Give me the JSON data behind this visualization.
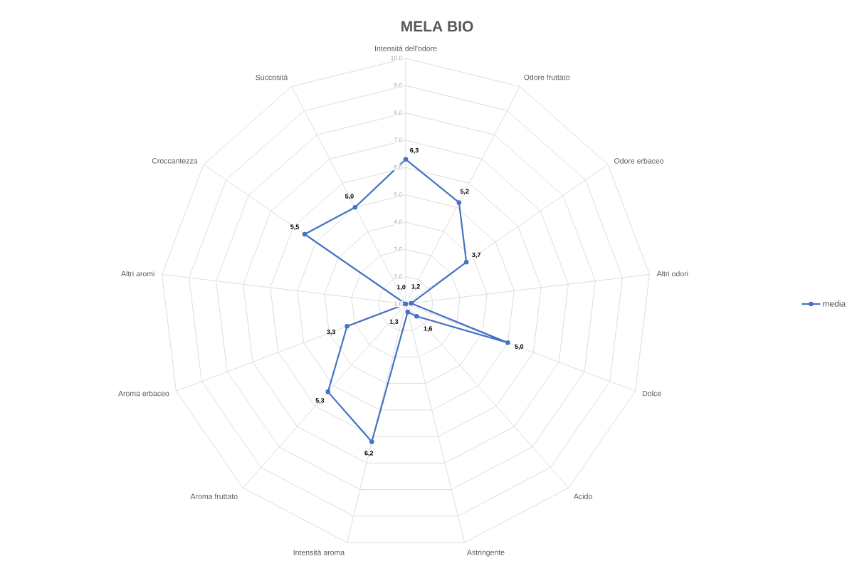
{
  "chart_data": {
    "type": "radar",
    "title": "MELA BIO",
    "categories": [
      "Intensità dell'odore",
      "Odore fruttato",
      "Odore erbaceo",
      "Altri odori",
      "Dolce",
      "Acido",
      "Astringente",
      "Intensità aroma",
      "Aroma fruttato",
      "Aroma erbaceo",
      "Altri aromi",
      "Croccantezza",
      "Succosità"
    ],
    "series": [
      {
        "name": "media",
        "color": "#4472c4",
        "values": [
          6.3,
          5.2,
          3.7,
          1.2,
          5.0,
          1.6,
          1.3,
          6.2,
          5.3,
          3.3,
          1.0,
          5.5,
          5.0
        ],
        "value_labels": [
          "6,3",
          "5,2",
          "3,7",
          "1,2",
          "5,0",
          "1,6",
          "1,3",
          "6,2",
          "5,3",
          "3,3",
          "1,0",
          "5,5",
          "5,0"
        ]
      }
    ],
    "ylim": [
      1,
      10
    ],
    "yticks": [
      {
        "value": 1,
        "label": "1,0"
      },
      {
        "value": 2,
        "label": "2,0"
      },
      {
        "value": 3,
        "label": "3,0"
      },
      {
        "value": 4,
        "label": "4,0"
      },
      {
        "value": 5,
        "label": "5,0"
      },
      {
        "value": 6,
        "label": "6,0"
      },
      {
        "value": 7,
        "label": "7,0"
      },
      {
        "value": 8,
        "label": "8,0"
      },
      {
        "value": 9,
        "label": "9,0"
      },
      {
        "value": 10,
        "label": "10,0"
      }
    ],
    "grid": true,
    "legend": "right",
    "marker": "circle"
  }
}
